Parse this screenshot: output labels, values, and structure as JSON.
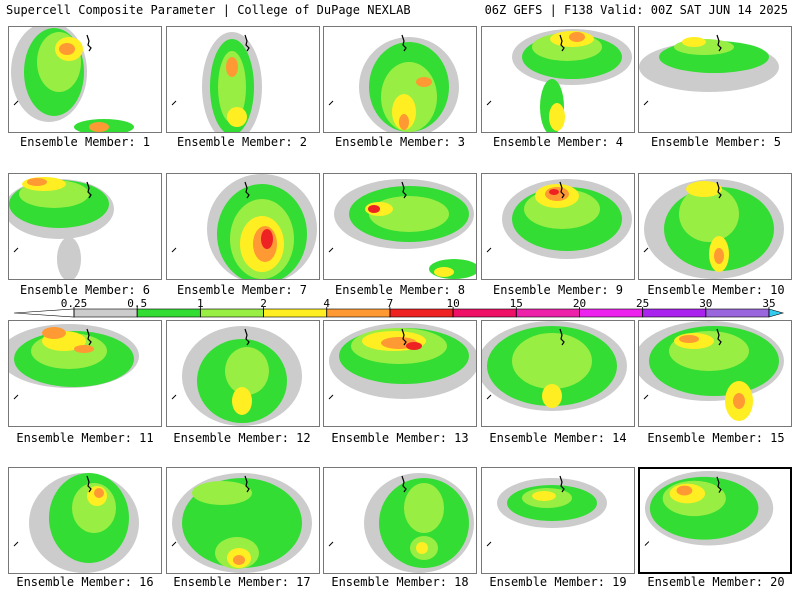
{
  "header": {
    "title": "Supercell Composite Parameter | College of DuPage NEXLAB",
    "run_info": "06Z GEFS | F138 Valid: 00Z SAT JUN 14 2025"
  },
  "panels": [
    {
      "label": "Ensemble Member: 1"
    },
    {
      "label": "Ensemble Member: 2"
    },
    {
      "label": "Ensemble Member: 3"
    },
    {
      "label": "Ensemble Member: 4"
    },
    {
      "label": "Ensemble Member: 5"
    },
    {
      "label": "Ensemble Member: 6"
    },
    {
      "label": "Ensemble Member: 7"
    },
    {
      "label": "Ensemble Member: 8"
    },
    {
      "label": "Ensemble Member: 9"
    },
    {
      "label": "Ensemble Member: 10"
    },
    {
      "label": "Ensemble Member: 11"
    },
    {
      "label": "Ensemble Member: 12"
    },
    {
      "label": "Ensemble Member: 13"
    },
    {
      "label": "Ensemble Member: 14"
    },
    {
      "label": "Ensemble Member: 15"
    },
    {
      "label": "Ensemble Member: 16"
    },
    {
      "label": "Ensemble Member: 17"
    },
    {
      "label": "Ensemble Member: 18"
    },
    {
      "label": "Ensemble Member: 19"
    },
    {
      "label": "Ensemble Member: 20",
      "selected": true
    }
  ],
  "colorbar": {
    "ticks": [
      "0.25",
      "0.5",
      "1",
      "2",
      "4",
      "7",
      "10",
      "15",
      "20",
      "25",
      "30",
      "35"
    ],
    "colors": [
      "#cccccc",
      "#33dd33",
      "#99ee44",
      "#ffee22",
      "#ff9933",
      "#ee2222",
      "#ee1166",
      "#ee22aa",
      "#ee22ee",
      "#aa22ee",
      "#9966dd",
      "#33ccee"
    ]
  },
  "palette": {
    "gray": "#cccccc",
    "green": "#33dd33",
    "lightgreen": "#99ee44",
    "yellow": "#ffee22",
    "orange": "#ff9933",
    "red": "#ee2222",
    "coast": "#000000"
  }
}
